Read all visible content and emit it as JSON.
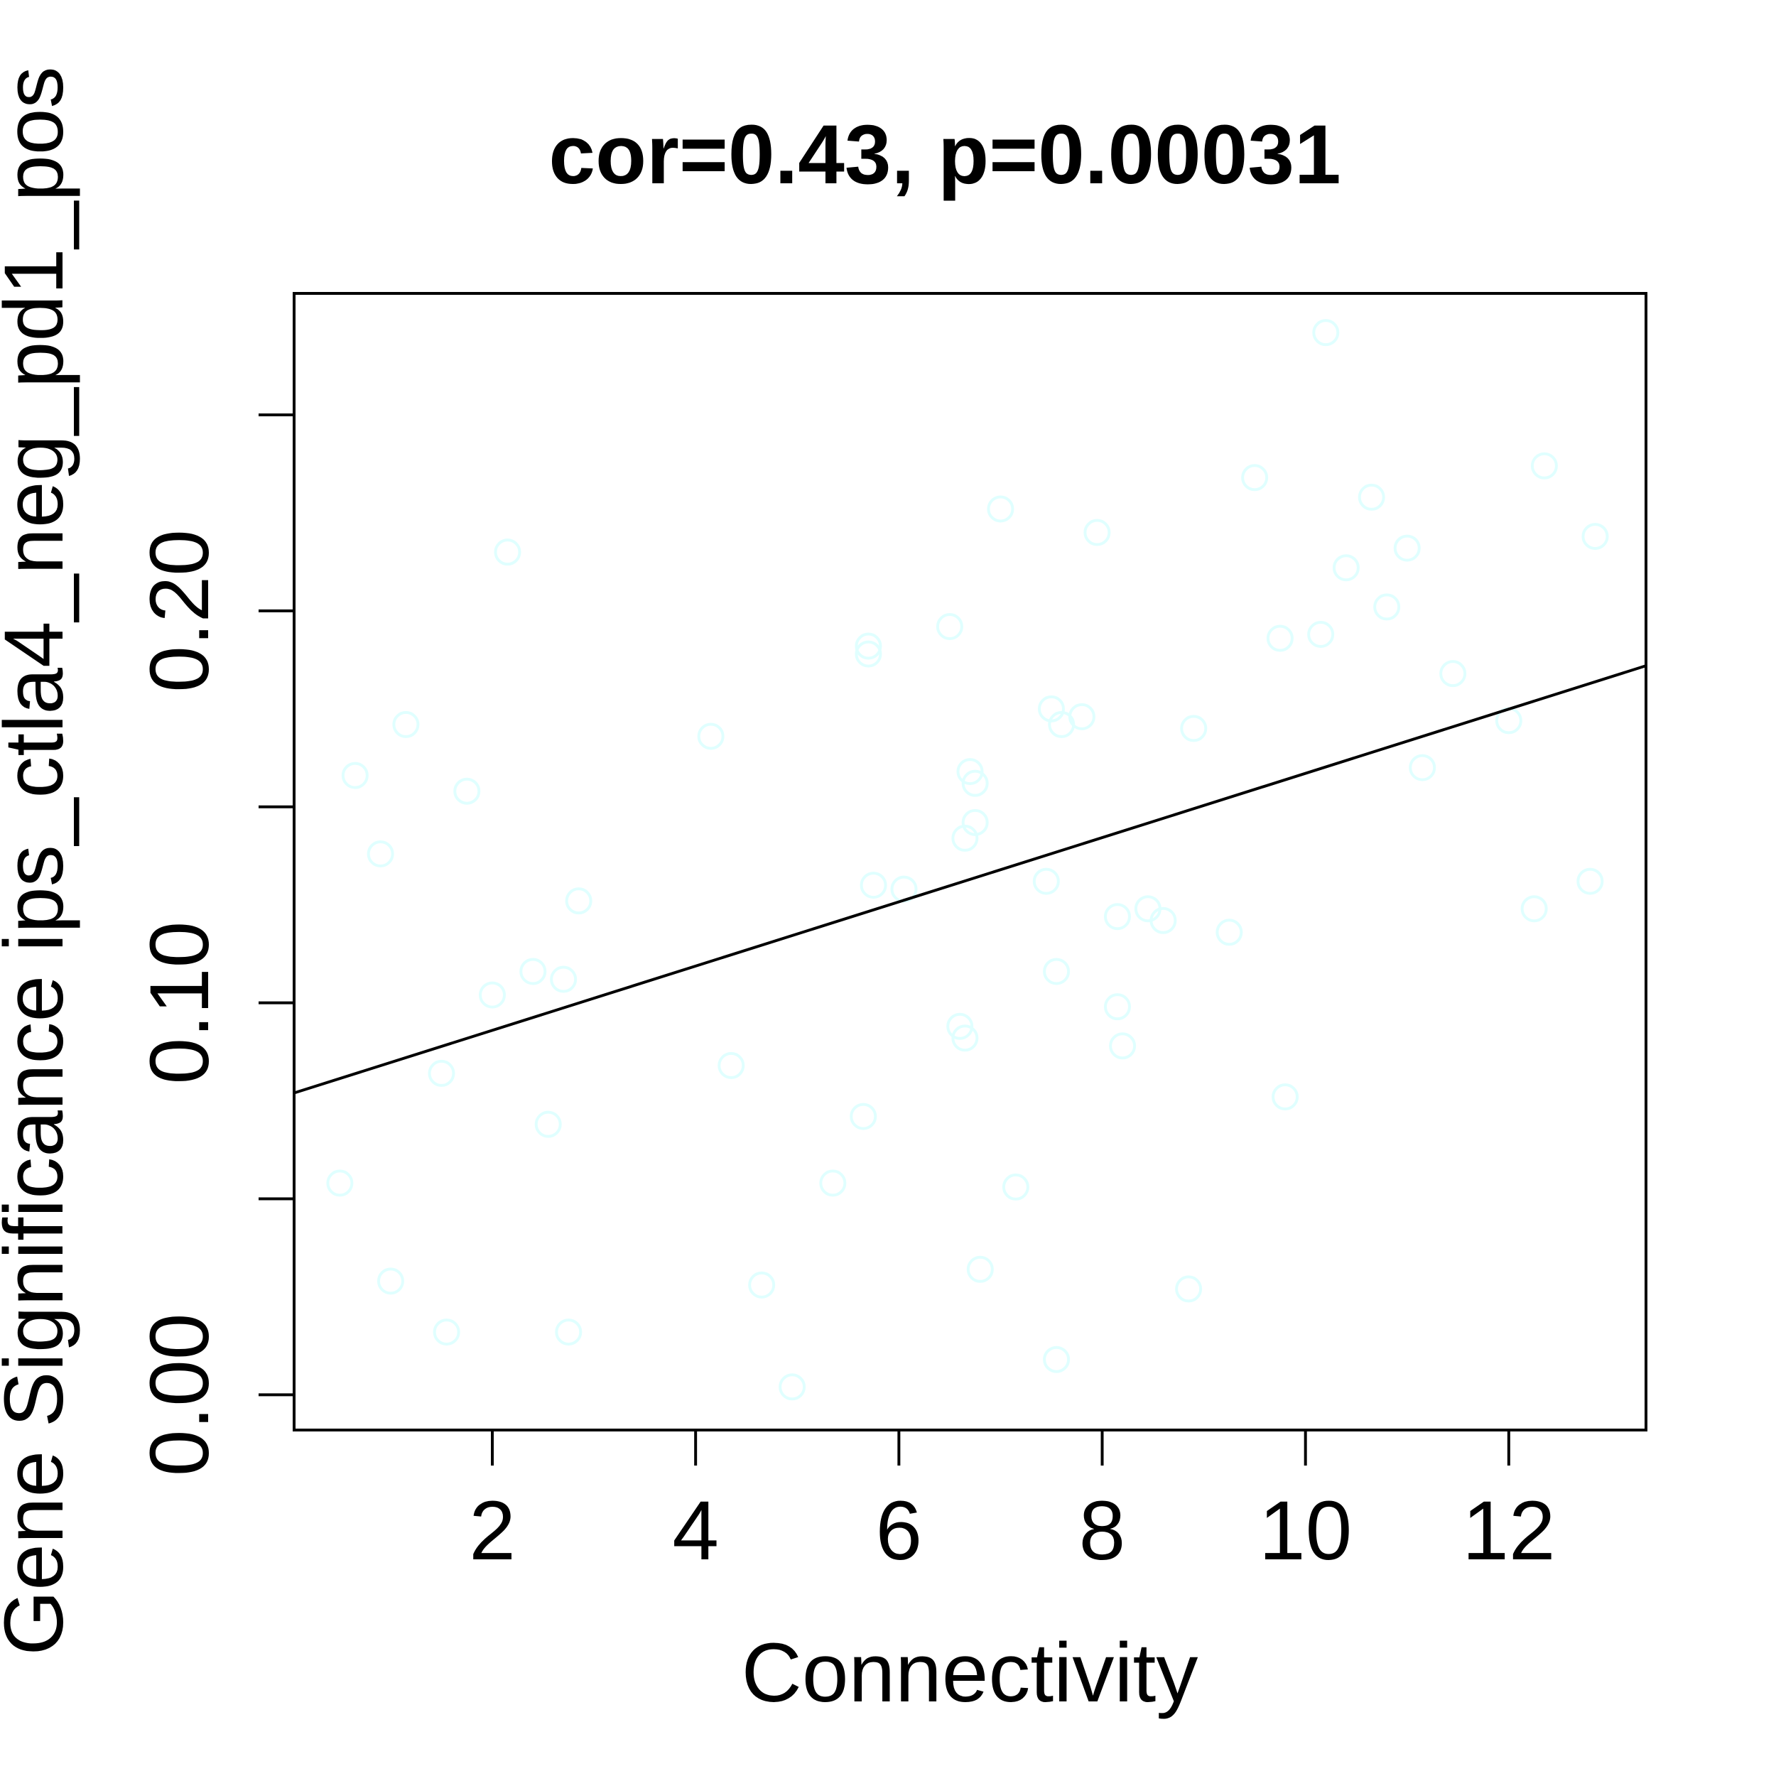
{
  "chart_data": {
    "type": "scatter",
    "title": "cor=0.43, p=0.00031",
    "xlabel": "Connectivity",
    "ylabel": "Gene Significance ips_ctla4_neg_pd1_pos",
    "xlim": [
      0.05,
      13.35
    ],
    "ylim": [
      -0.009,
      0.281
    ],
    "xticks": [
      {
        "value": 2,
        "label": "2"
      },
      {
        "value": 4,
        "label": "4"
      },
      {
        "value": 6,
        "label": "6"
      },
      {
        "value": 8,
        "label": "8"
      },
      {
        "value": 10,
        "label": "10"
      },
      {
        "value": 12,
        "label": "12"
      }
    ],
    "yticks": [
      {
        "value": 0.0,
        "label": "0.00"
      },
      {
        "value": 0.05,
        "label": ""
      },
      {
        "value": 0.1,
        "label": "0.10"
      },
      {
        "value": 0.15,
        "label": ""
      },
      {
        "value": 0.2,
        "label": "0.20"
      },
      {
        "value": 0.25,
        "label": ""
      }
    ],
    "point_color": "#E0FFFF",
    "line_color": "#000000",
    "fit_line": {
      "x": [
        0.05,
        13.35
      ],
      "y": [
        0.077,
        0.186
      ]
    },
    "points": [
      {
        "x": 0.5,
        "y": 0.054
      },
      {
        "x": 0.65,
        "y": 0.158
      },
      {
        "x": 0.9,
        "y": 0.138
      },
      {
        "x": 1.0,
        "y": 0.029
      },
      {
        "x": 1.15,
        "y": 0.171
      },
      {
        "x": 1.5,
        "y": 0.082
      },
      {
        "x": 1.55,
        "y": 0.016
      },
      {
        "x": 1.75,
        "y": 0.154
      },
      {
        "x": 2.0,
        "y": 0.102
      },
      {
        "x": 2.15,
        "y": 0.215
      },
      {
        "x": 2.4,
        "y": 0.108
      },
      {
        "x": 2.55,
        "y": 0.069
      },
      {
        "x": 2.7,
        "y": 0.106
      },
      {
        "x": 2.75,
        "y": 0.016
      },
      {
        "x": 2.85,
        "y": 0.126
      },
      {
        "x": 4.15,
        "y": 0.168
      },
      {
        "x": 4.35,
        "y": 0.084
      },
      {
        "x": 4.65,
        "y": 0.028
      },
      {
        "x": 4.95,
        "y": 0.002
      },
      {
        "x": 5.35,
        "y": 0.054
      },
      {
        "x": 5.65,
        "y": 0.071
      },
      {
        "x": 5.7,
        "y": 0.191
      },
      {
        "x": 5.7,
        "y": 0.189
      },
      {
        "x": 5.75,
        "y": 0.13
      },
      {
        "x": 6.05,
        "y": 0.129
      },
      {
        "x": 6.5,
        "y": 0.196
      },
      {
        "x": 6.6,
        "y": 0.094
      },
      {
        "x": 6.65,
        "y": 0.091
      },
      {
        "x": 6.65,
        "y": 0.142
      },
      {
        "x": 6.7,
        "y": 0.159
      },
      {
        "x": 6.75,
        "y": 0.156
      },
      {
        "x": 6.75,
        "y": 0.146
      },
      {
        "x": 6.8,
        "y": 0.032
      },
      {
        "x": 7.0,
        "y": 0.226
      },
      {
        "x": 7.15,
        "y": 0.053
      },
      {
        "x": 7.45,
        "y": 0.131
      },
      {
        "x": 7.5,
        "y": 0.175
      },
      {
        "x": 7.55,
        "y": 0.108
      },
      {
        "x": 7.55,
        "y": 0.009
      },
      {
        "x": 7.6,
        "y": 0.171
      },
      {
        "x": 7.8,
        "y": 0.173
      },
      {
        "x": 7.95,
        "y": 0.22
      },
      {
        "x": 8.15,
        "y": 0.099
      },
      {
        "x": 8.15,
        "y": 0.122
      },
      {
        "x": 8.2,
        "y": 0.089
      },
      {
        "x": 8.45,
        "y": 0.124
      },
      {
        "x": 8.6,
        "y": 0.121
      },
      {
        "x": 8.85,
        "y": 0.027
      },
      {
        "x": 8.9,
        "y": 0.17
      },
      {
        "x": 9.25,
        "y": 0.118
      },
      {
        "x": 9.5,
        "y": 0.234
      },
      {
        "x": 9.75,
        "y": 0.193
      },
      {
        "x": 9.8,
        "y": 0.076
      },
      {
        "x": 10.15,
        "y": 0.194
      },
      {
        "x": 10.2,
        "y": 0.271
      },
      {
        "x": 10.4,
        "y": 0.211
      },
      {
        "x": 10.65,
        "y": 0.229
      },
      {
        "x": 10.8,
        "y": 0.201
      },
      {
        "x": 11.0,
        "y": 0.216
      },
      {
        "x": 11.15,
        "y": 0.16
      },
      {
        "x": 11.45,
        "y": 0.184
      },
      {
        "x": 12.0,
        "y": 0.172
      },
      {
        "x": 12.25,
        "y": 0.124
      },
      {
        "x": 12.35,
        "y": 0.237
      },
      {
        "x": 12.8,
        "y": 0.131
      },
      {
        "x": 12.85,
        "y": 0.219
      }
    ]
  }
}
